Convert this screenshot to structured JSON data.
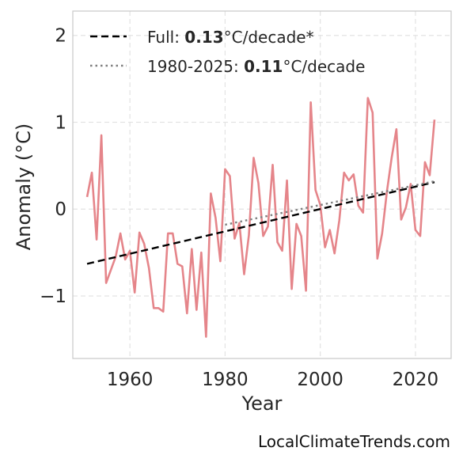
{
  "chart_data": {
    "type": "line",
    "xlabel": "Year",
    "ylabel": "Anomaly (°C)",
    "xlim": [
      1948,
      2027.5
    ],
    "ylim": [
      -1.72,
      2.28
    ],
    "xticks": [
      1960,
      1980,
      2000,
      2020
    ],
    "xtick_labels": [
      "1960",
      "1980",
      "2000",
      "2020"
    ],
    "yticks": [
      -1,
      0,
      1,
      2
    ],
    "ytick_labels": [
      "−1",
      "0",
      "1",
      "2"
    ],
    "grid": true,
    "legend_position": "top-left",
    "colors": {
      "series": "#e5858a",
      "full_trend": "#000000",
      "recent_trend": "#808080"
    },
    "series": [
      {
        "x": [
          1951,
          1952,
          1953,
          1954,
          1955,
          1956,
          1957,
          1958,
          1959,
          1960,
          1961,
          1962,
          1963,
          1964,
          1965,
          1966,
          1967,
          1968,
          1969,
          1970,
          1971,
          1972,
          1973,
          1974,
          1975,
          1976,
          1977,
          1978,
          1979,
          1980,
          1981,
          1982,
          1983,
          1984,
          1985,
          1986,
          1987,
          1988,
          1989,
          1990,
          1991,
          1992,
          1993,
          1994,
          1995,
          1996,
          1997,
          1998,
          1999,
          2000,
          2001,
          2002,
          2003,
          2004,
          2005,
          2006,
          2007,
          2008,
          2009,
          2010,
          2011,
          2012,
          2013,
          2014,
          2015,
          2016,
          2017,
          2018,
          2019,
          2020,
          2021,
          2022,
          2023,
          2024
        ],
        "y": [
          0.14,
          0.42,
          -0.35,
          0.85,
          -0.85,
          -0.7,
          -0.55,
          -0.28,
          -0.58,
          -0.48,
          -0.96,
          -0.27,
          -0.4,
          -0.68,
          -1.14,
          -1.14,
          -1.18,
          -0.28,
          -0.28,
          -0.63,
          -0.66,
          -1.2,
          -0.46,
          -1.16,
          -0.5,
          -1.47,
          0.18,
          -0.1,
          -0.6,
          0.46,
          0.38,
          -0.34,
          -0.16,
          -0.75,
          -0.3,
          0.59,
          0.3,
          -0.31,
          -0.2,
          0.51,
          -0.38,
          -0.48,
          0.33,
          -0.92,
          -0.17,
          -0.31,
          -0.94,
          1.23,
          0.22,
          0.05,
          -0.44,
          -0.24,
          -0.51,
          -0.13,
          0.42,
          0.33,
          0.4,
          0.04,
          -0.04,
          1.28,
          1.11,
          -0.57,
          -0.28,
          0.2,
          0.59,
          0.92,
          -0.12,
          0.02,
          0.29,
          -0.24,
          -0.31,
          0.54,
          0.39,
          1.03
        ]
      }
    ],
    "trend_lines": [
      {
        "name": "Full",
        "slope_value": "0.13",
        "unit": "°C/decade*",
        "x": [
          1951,
          2024
        ],
        "y": [
          -0.63,
          0.31
        ]
      },
      {
        "name": "1980-2025",
        "slope_value": "0.11",
        "unit": "°C/decade",
        "x": [
          1980,
          2024
        ],
        "y": [
          -0.18,
          0.32
        ]
      }
    ]
  },
  "legend": {
    "full_label": "Full: ",
    "full_value": "0.13",
    "full_unit": "°C/decade*",
    "recent_label": "1980-2025: ",
    "recent_value": "0.11",
    "recent_unit": "°C/decade"
  },
  "credit": "LocalClimateTrends.com"
}
